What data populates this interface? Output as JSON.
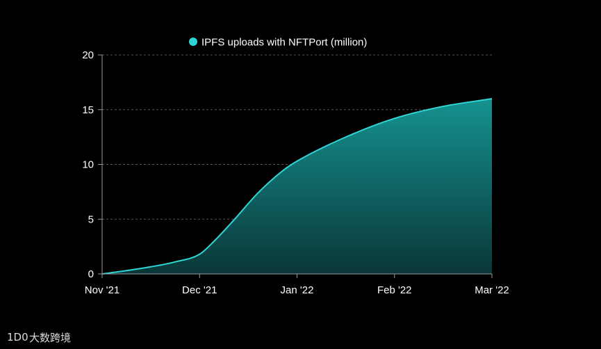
{
  "chart_data": {
    "type": "area",
    "title": "",
    "xlabel": "",
    "ylabel": "",
    "x_ticks": [
      "Nov '21",
      "Dec '21",
      "Jan '22",
      "Feb '22",
      "Mar '22"
    ],
    "ylim": [
      0,
      20
    ],
    "y_ticks": [
      0,
      5,
      10,
      15,
      20
    ],
    "grid": true,
    "legend": "top-center",
    "series": [
      {
        "name": "IPFS uploads with NFTPort (million)",
        "color": "#2fd6d6",
        "points": [
          [
            0.0,
            0.0
          ],
          [
            0.25,
            0.3
          ],
          [
            0.5,
            0.65
          ],
          [
            0.75,
            1.1
          ],
          [
            1.0,
            1.8
          ],
          [
            1.15,
            3.0
          ],
          [
            1.35,
            4.9
          ],
          [
            1.6,
            7.4
          ],
          [
            1.85,
            9.4
          ],
          [
            2.0,
            10.3
          ],
          [
            2.5,
            12.5
          ],
          [
            3.0,
            14.2
          ],
          [
            3.5,
            15.3
          ],
          [
            4.0,
            16.0
          ]
        ]
      }
    ]
  },
  "watermark": {
    "logo_text": "1D0",
    "text": "大数跨境"
  }
}
